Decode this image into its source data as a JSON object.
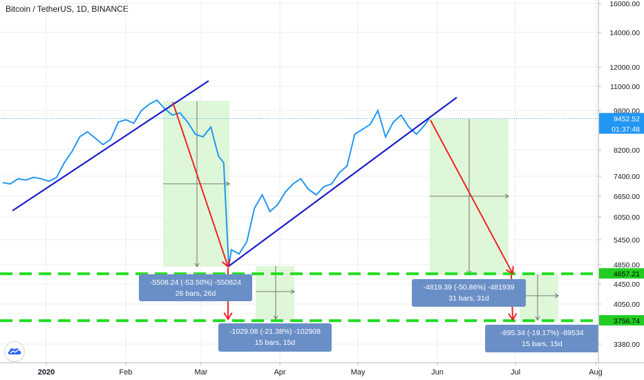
{
  "header": {
    "title": "Bitcoin / TetherUS, 1D, BINANCE"
  },
  "colors": {
    "price_line": "#2196f3",
    "trendline": "#1a1acc",
    "arrow": "#ee2222",
    "dashed_level": "#22dd22",
    "range_fill": "#dff7d9",
    "box_fill": "#6a8fc7",
    "axis_text": "#131722",
    "grid": "#eceef3",
    "price_tag": "#2196f3",
    "level_tag": "#22cc22"
  },
  "chart_data": {
    "type": "line",
    "series": [
      {
        "x": [
          "2019-12-15",
          "2019-12-18",
          "2019-12-21",
          "2019-12-24",
          "2019-12-27",
          "2019-12-30",
          "2020-01-02",
          "2020-01-05",
          "2020-01-08",
          "2020-01-11",
          "2020-01-14",
          "2020-01-17",
          "2020-01-20",
          "2020-01-23",
          "2020-01-26",
          "2020-01-29",
          "2020-02-01",
          "2020-02-04",
          "2020-02-07",
          "2020-02-10",
          "2020-02-13",
          "2020-02-16",
          "2020-02-19",
          "2020-02-22",
          "2020-02-25",
          "2020-02-28",
          "2020-03-02",
          "2020-03-05",
          "2020-03-08",
          "2020-03-10",
          "2020-03-12",
          "2020-03-13",
          "2020-03-16",
          "2020-03-19",
          "2020-03-22",
          "2020-03-25",
          "2020-03-28",
          "2020-03-31",
          "2020-04-03",
          "2020-04-06",
          "2020-04-09",
          "2020-04-12",
          "2020-04-15",
          "2020-04-18",
          "2020-04-21",
          "2020-04-24",
          "2020-04-27",
          "2020-04-30",
          "2020-05-03",
          "2020-05-06",
          "2020-05-09",
          "2020-05-12",
          "2020-05-15",
          "2020-05-18",
          "2020-05-21",
          "2020-05-24",
          "2020-05-27",
          "2020-05-29"
        ],
        "values": [
          7150,
          7100,
          7300,
          7250,
          7350,
          7300,
          7200,
          7350,
          7800,
          8150,
          8700,
          8900,
          8650,
          8400,
          8600,
          9300,
          9400,
          9250,
          9800,
          10100,
          10300,
          9900,
          9600,
          9700,
          9300,
          8800,
          8700,
          9100,
          8000,
          7800,
          4800,
          5200,
          5100,
          5400,
          6300,
          6700,
          6200,
          6400,
          6800,
          7100,
          7300,
          6900,
          6700,
          7000,
          7100,
          7500,
          7700,
          8800,
          9000,
          9200,
          9800,
          8700,
          9300,
          9600,
          9100,
          8800,
          9150,
          9452.52
        ]
      }
    ],
    "y_ticks": [
      "16000.00",
      "14000.00",
      "12000.00",
      "11000.00",
      "9800.00",
      "8200.00",
      "7400.00",
      "6650.00",
      "6050.00",
      "5450.00",
      "4850.00",
      "4450.00",
      "4050.00",
      "3380.00"
    ],
    "x_ticks": [
      "2020",
      "Feb",
      "Mar",
      "Apr",
      "May",
      "Jun",
      "Jul",
      "Aug"
    ],
    "price_tag": {
      "value": "9452.52",
      "countdown": "01:37:48"
    },
    "levels": [
      {
        "value": 4657.21,
        "label": "4657.21"
      },
      {
        "value": 3756.74,
        "label": "3756.74"
      }
    ],
    "measure_boxes": [
      {
        "line1": "-5508.24 (-53.50%) -550824",
        "line2": "26 bars, 26d"
      },
      {
        "line1": "-1029.08 (-21.38%) -102908",
        "line2": "15 bars, 15d"
      },
      {
        "line1": "-4819.39 (-50.86%) -481939",
        "line2": "31 bars, 31d"
      },
      {
        "line1": "-895.34 (-19.17%) -89534",
        "line2": "15 bars, 15d"
      }
    ]
  }
}
